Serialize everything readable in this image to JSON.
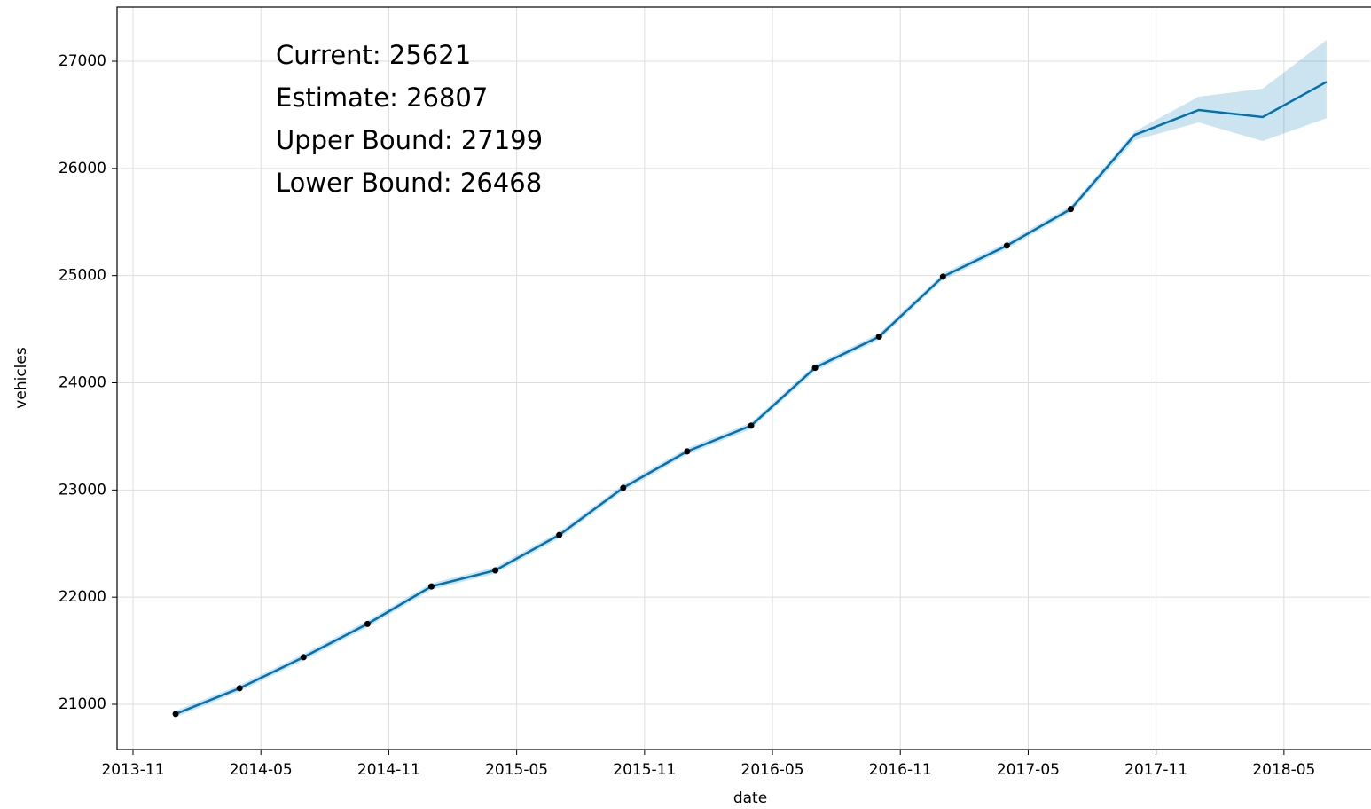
{
  "chart_data": {
    "type": "forecast",
    "xlabel": "date",
    "ylabel": "vehicles",
    "annotations": [
      "Current: 25621",
      "Estimate: 26807",
      "Upper Bound: 27199",
      "Lower Bound: 26468"
    ],
    "x": [
      "2014-01",
      "2014-04",
      "2014-07",
      "2014-10",
      "2015-01",
      "2015-04",
      "2015-07",
      "2015-10",
      "2016-01",
      "2016-04",
      "2016-07",
      "2016-10",
      "2017-01",
      "2017-04",
      "2017-07",
      "2017-10",
      "2018-01",
      "2018-04",
      "2018-07"
    ],
    "actual": [
      20910,
      21150,
      21440,
      21750,
      22100,
      22250,
      22580,
      23020,
      23360,
      23600,
      24140,
      24430,
      24990,
      25280,
      25621,
      null,
      null,
      null,
      null
    ],
    "yhat": [
      20910,
      21150,
      21440,
      21750,
      22100,
      22250,
      22580,
      23020,
      23360,
      23600,
      24140,
      24430,
      24990,
      25280,
      25621,
      26313,
      26545,
      26479,
      26807
    ],
    "yhat_upper": [
      20940,
      21180,
      21470,
      21780,
      22130,
      22280,
      22610,
      23050,
      23390,
      23630,
      24170,
      24460,
      25020,
      25310,
      25651,
      26346,
      26669,
      26744,
      27199
    ],
    "yhat_lower": [
      20880,
      21120,
      21410,
      21720,
      22070,
      22220,
      22550,
      22990,
      23330,
      23570,
      24110,
      24400,
      24960,
      25250,
      25591,
      26264,
      26429,
      26255,
      26468
    ],
    "line_color": "#0072B2",
    "band_color": "#0072B2",
    "point_color": "#000000",
    "xlim": [
      "2013-11",
      "2018-09"
    ],
    "xticks": [
      "2013-11",
      "2014-05",
      "2014-11",
      "2015-05",
      "2015-11",
      "2016-05",
      "2016-11",
      "2017-05",
      "2017-11",
      "2018-05"
    ],
    "ylim": [
      20578,
      27505
    ],
    "yticks": [
      21000,
      22000,
      23000,
      24000,
      25000,
      26000,
      27000
    ],
    "grid": true
  }
}
